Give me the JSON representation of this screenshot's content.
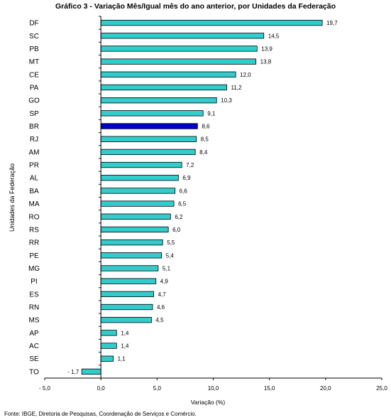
{
  "title": "Gráfico 3 - Variação Mês/Igual mês do ano anterior, por  Unidades da Federação",
  "source": "Fonte: IBGE, Diretoria de Pesquisas, Coordenação de Serviços e Comércio.",
  "chart_data": {
    "type": "bar",
    "orientation": "horizontal",
    "xlabel": "Variação (%)",
    "ylabel": "Unidades da Federação",
    "xlim": [
      -5,
      25
    ],
    "xticks": [
      -5,
      0,
      5,
      10,
      15,
      20,
      25
    ],
    "xtick_labels": [
      "- 5,0",
      "0,0",
      "5,0",
      "10,0",
      "15,0",
      "20,0",
      "25,0"
    ],
    "grid": false,
    "categories": [
      "DF",
      "SC",
      "PB",
      "MT",
      "CE",
      "PA",
      "GO",
      "SP",
      "BR",
      "RJ",
      "AM",
      "PR",
      "AL",
      "BA",
      "MA",
      "RO",
      "RS",
      "RR",
      "PE",
      "MG",
      "PI",
      "ES",
      "RN",
      "MS",
      "AP",
      "AC",
      "SE",
      "TO"
    ],
    "values": [
      19.7,
      14.5,
      13.9,
      13.8,
      12.0,
      11.2,
      10.3,
      9.1,
      8.6,
      8.5,
      8.4,
      7.2,
      6.9,
      6.6,
      6.5,
      6.2,
      6.0,
      5.5,
      5.4,
      5.1,
      4.9,
      4.7,
      4.6,
      4.5,
      1.4,
      1.4,
      1.1,
      -1.7
    ],
    "value_labels": [
      "19,7",
      "14,5",
      "13,9",
      "13,8",
      "12,0",
      "11,2",
      "10,3",
      "9,1",
      "8,6",
      "8,5",
      "8,4",
      "7,2",
      "6,9",
      "6,6",
      "6,5",
      "6,2",
      "6,0",
      "5,5",
      "5,4",
      "5,1",
      "4,9",
      "4,7",
      "4,6",
      "4,5",
      "1,4",
      "1,4",
      "1,1",
      "- 1,7"
    ],
    "highlight_category": "BR",
    "colors": {
      "bar": "#33cccc",
      "highlight": "#0000cc",
      "outline": "#000000"
    }
  }
}
